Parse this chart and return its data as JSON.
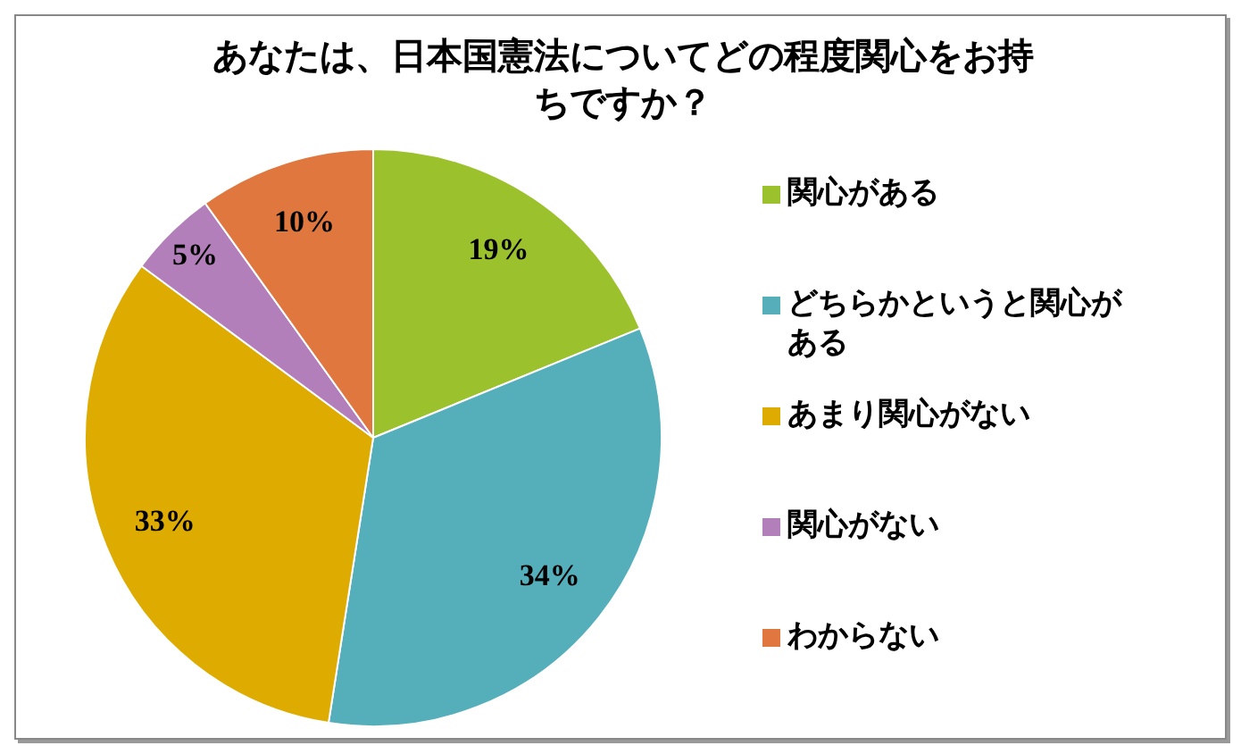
{
  "chart_data": {
    "type": "pie",
    "title": "あなたは、日本国憲法についてどの程度関心をお持ちですか？",
    "categories": [
      "関心がある",
      "どちらかというと関心がある",
      "あまり関心がない",
      "関心がない",
      "わからない"
    ],
    "values": [
      19,
      34,
      33,
      5,
      10
    ],
    "colors": [
      "#9bc22c",
      "#55afbb",
      "#deac00",
      "#b27fba",
      "#e0773f"
    ],
    "value_labels": [
      "19%",
      "34%",
      "33%",
      "5%",
      "10%"
    ],
    "legend": "right"
  }
}
